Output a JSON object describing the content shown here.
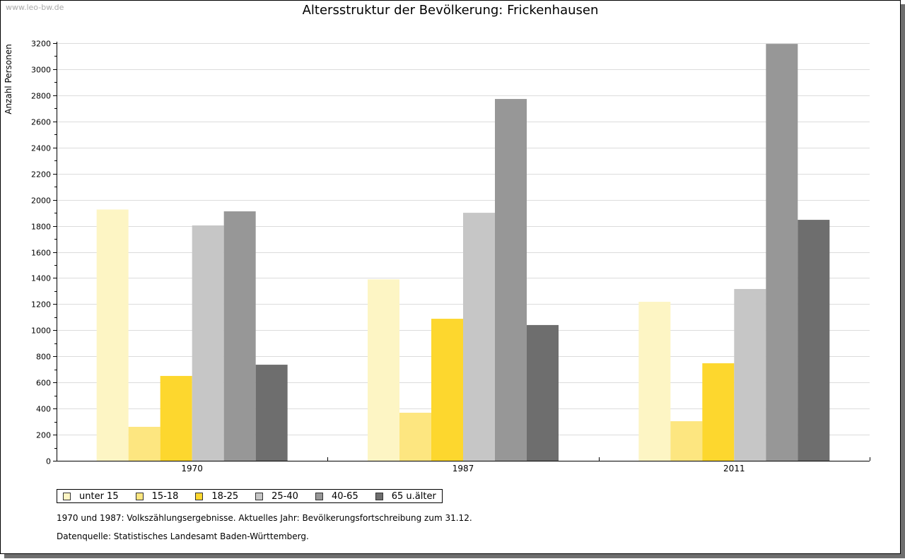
{
  "watermark": "www.leo-bw.de",
  "chart_data": {
    "type": "bar",
    "title": "Altersstruktur der Bevölkerung: Frickenhausen",
    "ylabel": "Anzahl Personen",
    "xlabel": "",
    "ylim": [
      0,
      3200
    ],
    "yticks": [
      0,
      200,
      400,
      600,
      800,
      1000,
      1200,
      1400,
      1600,
      1800,
      2000,
      2200,
      2400,
      2600,
      2800,
      3000,
      3200
    ],
    "grid": true,
    "legend_position": "bottom-left",
    "categories": [
      "1970",
      "1987",
      "2011"
    ],
    "series": [
      {
        "name": "unter 15",
        "color": "#fdf5c4",
        "values": [
          1925,
          1390,
          1218
        ]
      },
      {
        "name": "15-18",
        "color": "#fde680",
        "values": [
          260,
          368,
          303
        ]
      },
      {
        "name": "18-25",
        "color": "#fdd72e",
        "values": [
          650,
          1088,
          747
        ]
      },
      {
        "name": "25-40",
        "color": "#c6c6c6",
        "values": [
          1803,
          1900,
          1316
        ]
      },
      {
        "name": "40-65",
        "color": "#979797",
        "values": [
          1911,
          2772,
          3194
        ]
      },
      {
        "name": "65 u.älter",
        "color": "#6e6e6e",
        "values": [
          736,
          1040,
          1846
        ]
      }
    ]
  },
  "notes": [
    "1970 und 1987: Volkszählungsergebnisse. Aktuelles Jahr: Bevölkerungsfortschreibung zum 31.12.",
    "Datenquelle: Statistisches Landesamt Baden-Württemberg."
  ]
}
